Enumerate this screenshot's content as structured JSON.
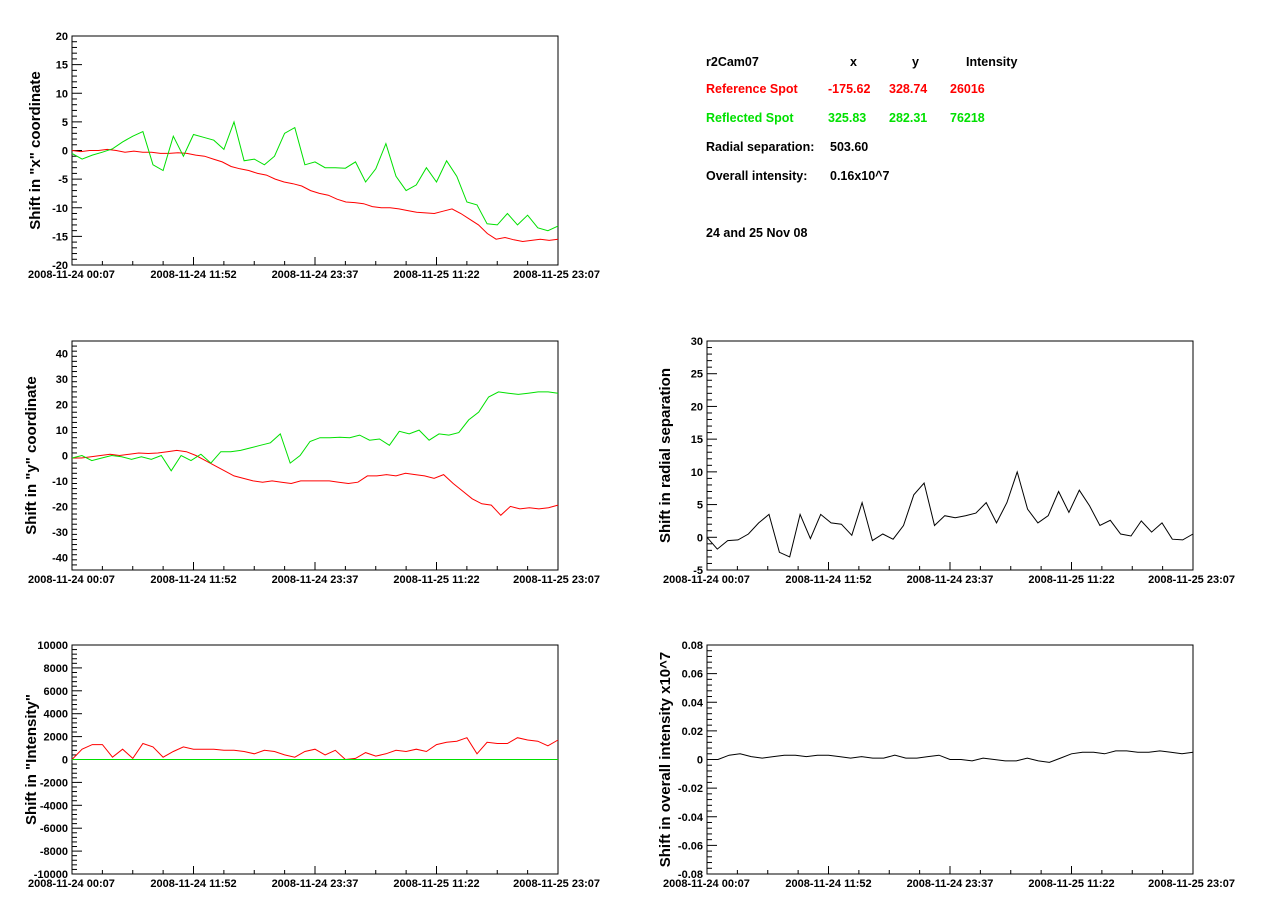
{
  "colors": {
    "reference": "#ff0000",
    "reflected": "#00e000",
    "black": "#000000"
  },
  "info": {
    "camera": "r2Cam07",
    "col_x": "x",
    "col_y": "y",
    "col_intensity": "Intensity",
    "reference": {
      "label": "Reference Spot",
      "x": "-175.62",
      "y": "328.74",
      "intensity": "26016"
    },
    "reflected": {
      "label": "Reflected Spot",
      "x": "325.83",
      "y": "282.31",
      "intensity": "76218"
    },
    "radial_label": "Radial separation:",
    "radial_value": "503.60",
    "overall_label": "Overall intensity:",
    "overall_value": "0.16x10^7",
    "dates": "24 and 25 Nov 08"
  },
  "chart_data": [
    {
      "id": "x-shift",
      "type": "line",
      "ylabel": "Shift in \"x\" coordinate",
      "ylim": [
        -20,
        20
      ],
      "yticks": [
        -20,
        -15,
        -10,
        -5,
        0,
        5,
        10,
        15,
        20
      ],
      "xticks": [
        "2008-11-24 00:07",
        "2008-11-24 11:52",
        "2008-11-24 23:37",
        "2008-11-25 11:22",
        "2008-11-25 23:07"
      ],
      "series": [
        {
          "color": "#ff0000",
          "values": [
            0,
            -0.2,
            0,
            0,
            0.2,
            0,
            -0.3,
            -0.1,
            -0.3,
            -0.3,
            -0.5,
            -0.5,
            -0.4,
            -0.5,
            -0.8,
            -1,
            -1.5,
            -2,
            -2.8,
            -3.2,
            -3.5,
            -4,
            -4.3,
            -5,
            -5.5,
            -5.8,
            -6.2,
            -7,
            -7.5,
            -7.8,
            -8.5,
            -9,
            -9.1,
            -9.3,
            -9.8,
            -10,
            -10,
            -10.2,
            -10.5,
            -10.8,
            -10.9,
            -11,
            -10.6,
            -10.2,
            -11,
            -12,
            -13,
            -14.5,
            -15.5,
            -15.2,
            -15.6,
            -15.9,
            -15.7,
            -15.5,
            -15.7,
            -15.5
          ]
        },
        {
          "color": "#00e000",
          "values": [
            -0.5,
            -1.5,
            -0.8,
            -0.3,
            0.3,
            1.5,
            2.5,
            3.3,
            -2.5,
            -3.5,
            2.5,
            -1,
            2.8,
            2.3,
            1.8,
            0.2,
            5,
            -1.8,
            -1.5,
            -2.5,
            -1,
            3,
            4,
            -2.5,
            -2,
            -3,
            -3,
            -3.1,
            -2,
            -5.5,
            -3.2,
            1.2,
            -4.5,
            -7,
            -6,
            -3,
            -5.5,
            -1.8,
            -4.5,
            -9,
            -9.5,
            -12.8,
            -13,
            -11,
            -13,
            -11.3,
            -13.5,
            -14,
            -13.2
          ]
        }
      ]
    },
    {
      "id": "y-shift",
      "type": "line",
      "ylabel": "Shift in \"y\" coordinate",
      "ylim": [
        -45,
        45
      ],
      "yticks": [
        -40,
        -30,
        -20,
        -10,
        0,
        10,
        20,
        30,
        40
      ],
      "xticks": [
        "2008-11-24 00:07",
        "2008-11-24 11:52",
        "2008-11-24 23:37",
        "2008-11-25 11:22",
        "2008-11-25 23:07"
      ],
      "series": [
        {
          "color": "#ff0000",
          "values": [
            -1,
            -1,
            -0.5,
            0,
            0.5,
            0,
            0.5,
            1,
            0.8,
            1,
            1.5,
            2,
            1.5,
            0,
            -2,
            -4,
            -6,
            -8,
            -9,
            -10,
            -10.5,
            -10,
            -10.5,
            -11,
            -10,
            -10,
            -10,
            -10,
            -10.5,
            -11,
            -10.5,
            -8,
            -8,
            -7.5,
            -8,
            -7,
            -7.5,
            -8,
            -9,
            -7.5,
            -11,
            -14,
            -17,
            -19,
            -19.5,
            -23.5,
            -20,
            -21,
            -20.5,
            -21,
            -20.5,
            -19.5
          ]
        },
        {
          "color": "#00e000",
          "values": [
            -1,
            0,
            -2,
            -1,
            0,
            -0.5,
            -1.5,
            -0.5,
            -1.5,
            0,
            -6,
            0,
            -2,
            0.5,
            -3,
            1.5,
            1.5,
            2,
            3,
            4,
            5,
            8.5,
            -3,
            0,
            5.5,
            7,
            7,
            7.2,
            7,
            8,
            6,
            6.5,
            4,
            9.5,
            8.5,
            10,
            6,
            8.5,
            8,
            9,
            14,
            17,
            23,
            25,
            24.5,
            24,
            24.5,
            25,
            25,
            24.5
          ]
        }
      ]
    },
    {
      "id": "intensity-shift",
      "type": "line",
      "ylabel": "Shift in \"Intensity\"",
      "ylim": [
        -10000,
        10000
      ],
      "yticks": [
        -10000,
        -8000,
        -6000,
        -4000,
        -2000,
        0,
        2000,
        4000,
        6000,
        8000,
        10000
      ],
      "xticks": [
        "2008-11-24 00:07",
        "2008-11-24 11:52",
        "2008-11-24 23:37",
        "2008-11-25 11:22",
        "2008-11-25 23:07"
      ],
      "series": [
        {
          "color": "#ff0000",
          "values": [
            0,
            900,
            1300,
            1300,
            200,
            900,
            100,
            1400,
            1100,
            200,
            700,
            1100,
            900,
            900,
            900,
            800,
            800,
            700,
            500,
            800,
            700,
            400,
            200,
            700,
            900,
            400,
            800,
            0,
            100,
            600,
            300,
            500,
            800,
            700,
            900,
            700,
            1300,
            1500,
            1600,
            1900,
            500,
            1500,
            1400,
            1400,
            1900,
            1700,
            1600,
            1200,
            1700
          ]
        },
        {
          "color": "#00e000",
          "values": [
            0,
            0,
            0,
            0,
            0,
            0,
            0,
            0,
            0,
            0,
            0,
            0,
            0,
            0,
            0,
            0,
            0,
            0,
            0,
            0,
            0,
            0,
            0,
            0,
            0,
            0,
            0,
            0,
            0,
            0,
            0,
            0,
            0,
            0,
            0,
            0,
            0,
            0,
            0,
            0,
            0,
            0,
            0,
            0,
            0,
            0,
            0,
            0,
            0
          ]
        }
      ]
    },
    {
      "id": "radial-shift",
      "type": "line",
      "ylabel": "Shift in radial separation",
      "ylim": [
        -5,
        30
      ],
      "yticks": [
        -5,
        0,
        5,
        10,
        15,
        20,
        25,
        30
      ],
      "xticks": [
        "2008-11-24 00:07",
        "2008-11-24 11:52",
        "2008-11-24 23:37",
        "2008-11-25 11:22",
        "2008-11-25 23:07"
      ],
      "series": [
        {
          "color": "#000000",
          "values": [
            0,
            -1.8,
            -0.5,
            -0.4,
            0.5,
            2.2,
            3.5,
            -2.3,
            -3,
            3.5,
            -0.2,
            3.5,
            2.2,
            2,
            0.3,
            5.3,
            -0.5,
            0.5,
            -0.3,
            1.8,
            6.5,
            8.3,
            1.8,
            3.3,
            3,
            3.3,
            3.7,
            5.3,
            2.2,
            5.3,
            10,
            4.3,
            2.2,
            3.3,
            7,
            3.8,
            7.2,
            4.8,
            1.8,
            2.6,
            0.5,
            0.2,
            2.5,
            0.8,
            2.2,
            -0.3,
            -0.4,
            0.5
          ]
        }
      ]
    },
    {
      "id": "overall-shift",
      "type": "line",
      "ylabel": "Shift in overall intensity x10^7",
      "ylim": [
        -0.08,
        0.08
      ],
      "yticks": [
        -0.08,
        -0.06,
        -0.04,
        -0.02,
        0,
        0.02,
        0.04,
        0.06,
        0.08
      ],
      "xticks": [
        "2008-11-24 00:07",
        "2008-11-24 11:52",
        "2008-11-24 23:37",
        "2008-11-25 11:22",
        "2008-11-25 23:07"
      ],
      "series": [
        {
          "color": "#000000",
          "values": [
            0,
            0,
            0.003,
            0.004,
            0.002,
            0.001,
            0.002,
            0.003,
            0.003,
            0.002,
            0.003,
            0.003,
            0.002,
            0.001,
            0.002,
            0.001,
            0.001,
            0.003,
            0.001,
            0.001,
            0.002,
            0.003,
            0,
            0,
            -0.001,
            0.001,
            0,
            -0.001,
            -0.001,
            0.001,
            -0.001,
            -0.002,
            0.001,
            0.004,
            0.005,
            0.005,
            0.004,
            0.006,
            0.006,
            0.005,
            0.005,
            0.006,
            0.005,
            0.004,
            0.005
          ]
        }
      ]
    }
  ]
}
